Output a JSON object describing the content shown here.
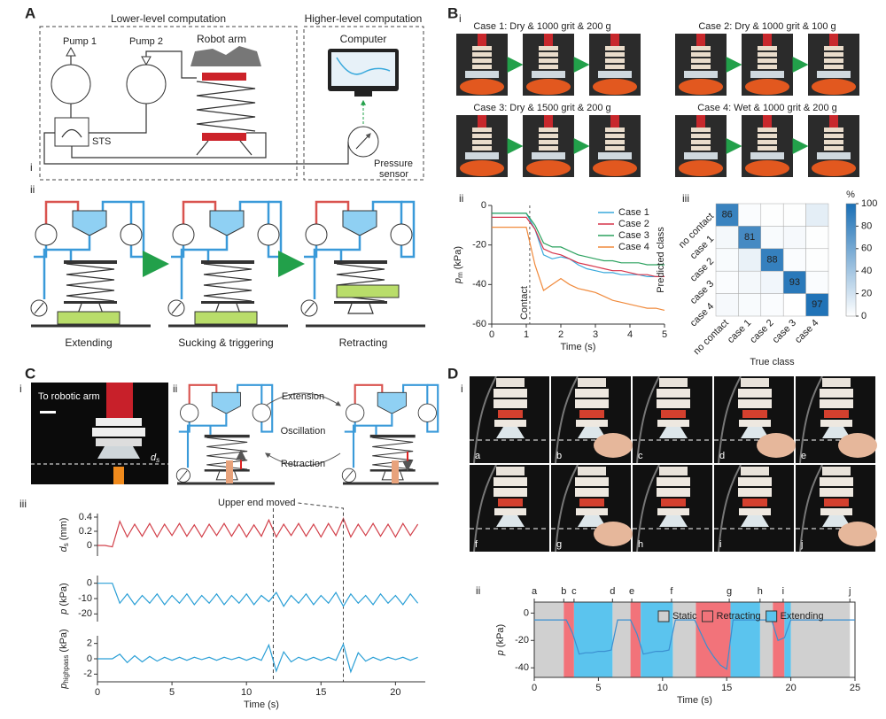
{
  "panels": {
    "A": {
      "letter": "A",
      "headers": [
        "Lower-level computation",
        "Higher-level computation"
      ],
      "labels": {
        "pump1": "Pump 1",
        "pump2": "Pump 2",
        "robot_arm": "Robot arm",
        "computer": "Computer",
        "sts": "STS",
        "sensor": [
          "Pressure",
          "sensor"
        ]
      },
      "sub": [
        "i",
        "ii"
      ],
      "steps": [
        "Extending",
        "Sucking & triggering",
        "Retracting"
      ]
    },
    "B": {
      "letter": "B",
      "sub": [
        "i",
        "ii",
        "iii"
      ],
      "cases": [
        "Case 1: Dry & 1000 grit & 200 g",
        "Case 2: Dry & 1000 grit & 100 g",
        "Case 3: Dry & 1500 grit & 200 g",
        "Case 4: Wet & 1000 grit & 200 g"
      ]
    },
    "C": {
      "letter": "C",
      "sub": [
        "i",
        "ii",
        "iii"
      ],
      "photo_label": "To robotic arm",
      "ds_symbol": "d",
      "ds_sub": "s",
      "cycle": [
        "Extension",
        "Oscillation",
        "Retraction"
      ]
    },
    "D": {
      "letter": "D",
      "sub": [
        "i",
        "ii"
      ],
      "frames": [
        "a",
        "b",
        "c",
        "d",
        "e",
        "f",
        "g",
        "h",
        "i",
        "j"
      ]
    }
  },
  "chart_data": [
    {
      "type": "line",
      "x": [
        0,
        0.25,
        0.5,
        0.75,
        1,
        1.25,
        1.5,
        1.75,
        2,
        2.25,
        2.5,
        2.75,
        3,
        3.25,
        3.5,
        3.75,
        4,
        4.25,
        4.5,
        4.75,
        5
      ],
      "series": [
        {
          "name": "Case 1",
          "color": "#39a9dc",
          "values": [
            -4,
            -4,
            -4,
            -4,
            -4,
            -12,
            -25,
            -27,
            -26,
            -27,
            -30,
            -32,
            -33,
            -34,
            -34,
            -35,
            -35,
            -35,
            -36,
            -36,
            -36
          ]
        },
        {
          "name": "Case 2",
          "color": "#d6334a",
          "values": [
            -6,
            -6,
            -6,
            -6,
            -6,
            -12,
            -22,
            -24,
            -25,
            -27,
            -29,
            -30,
            -31,
            -32,
            -33,
            -33,
            -34,
            -35,
            -35,
            -36,
            -36
          ]
        },
        {
          "name": "Case 3",
          "color": "#2ca25f",
          "values": [
            -4,
            -4,
            -4,
            -4,
            -4,
            -10,
            -19,
            -21,
            -21,
            -23,
            -25,
            -26,
            -27,
            -28,
            -28,
            -29,
            -29,
            -29,
            -30,
            -30,
            -30
          ]
        },
        {
          "name": "Case 4",
          "color": "#f08a3c",
          "values": [
            -11,
            -11,
            -11,
            -11,
            -11,
            -30,
            -43,
            -40,
            -37,
            -40,
            -42,
            -43,
            -44,
            -46,
            -48,
            -49,
            -50,
            -51,
            -52,
            -52,
            -53
          ]
        }
      ],
      "xlim": [
        0,
        5
      ],
      "xticks": [
        0,
        1,
        2,
        3,
        4,
        5
      ],
      "ylim": [
        -60,
        0
      ],
      "yticks": [
        -60,
        -40,
        -20,
        0
      ],
      "xlabel": "Time (s)",
      "ylabel": {
        "symbol": "p",
        "subscript": "m",
        "unit": "(kPa)"
      },
      "markers": [
        {
          "x": 1.1,
          "label": "Contact"
        }
      ],
      "legend": "upper right",
      "legend_direction": "vertical"
    },
    {
      "type": "heatmap",
      "x_categories": [
        "no contact",
        "case 1",
        "case 2",
        "case 3",
        "case 4"
      ],
      "y_categories": [
        "no contact",
        "case 1",
        "case 2",
        "case 3",
        "case 4"
      ],
      "values": [
        [
          86,
          2,
          1,
          1,
          12
        ],
        [
          5,
          81,
          3,
          4,
          1
        ],
        [
          3,
          9,
          88,
          2,
          1
        ],
        [
          2,
          5,
          6,
          93,
          2
        ],
        [
          4,
          3,
          2,
          0,
          97
        ]
      ],
      "label_cells": "diagonal",
      "colors": [
        "#ffffff",
        "#1a6fb5"
      ],
      "colorbar": {
        "label": "%",
        "lim": [
          0,
          100
        ],
        "ticks": [
          0,
          20,
          40,
          60,
          80,
          100
        ]
      },
      "xlabel": "True class",
      "ylabel": "Predicted class"
    },
    {
      "type": "line",
      "x": [
        0,
        0.5,
        1,
        1.5,
        2,
        2.5,
        3,
        3.5,
        4,
        4.5,
        5,
        5.5,
        6,
        6.5,
        7,
        7.5,
        8,
        8.5,
        9,
        9.5,
        10,
        10.5,
        11,
        11.5,
        12,
        12.5,
        13,
        13.5,
        14,
        14.5,
        15,
        15.5,
        16,
        16.5,
        17,
        17.5,
        18,
        18.5,
        19,
        19.5,
        20,
        20.5,
        21,
        21.5
      ],
      "series": [
        {
          "color": "#d2404a",
          "values": [
            0,
            0,
            -0.02,
            0.34,
            0.12,
            0.3,
            0.13,
            0.31,
            0.12,
            0.3,
            0.14,
            0.31,
            0.13,
            0.29,
            0.12,
            0.3,
            0.14,
            0.31,
            0.13,
            0.3,
            0.12,
            0.29,
            0.13,
            0.36,
            0.12,
            0.3,
            0.14,
            0.31,
            0.13,
            0.3,
            0.12,
            0.31,
            0.14,
            0.38,
            0.12,
            0.3,
            0.14,
            0.31,
            0.13,
            0.3,
            0.12,
            0.31,
            0.14,
            0.3
          ]
        }
      ],
      "xlim": [
        0,
        22
      ],
      "ylim": [
        -0.15,
        0.45
      ],
      "yticks": [
        0,
        0.2,
        0.4
      ],
      "ylabel": {
        "symbol": "d",
        "subscript": "s",
        "unit": "(mm)"
      },
      "annotation": {
        "text": "Upper end moved",
        "x": [
          11.8,
          16.5
        ]
      }
    },
    {
      "type": "line",
      "x": [
        0,
        0.5,
        1,
        1.5,
        2,
        2.5,
        3,
        3.5,
        4,
        4.5,
        5,
        5.5,
        6,
        6.5,
        7,
        7.5,
        8,
        8.5,
        9,
        9.5,
        10,
        10.5,
        11,
        11.5,
        12,
        12.5,
        13,
        13.5,
        14,
        14.5,
        15,
        15.5,
        16,
        16.5,
        17,
        17.5,
        18,
        18.5,
        19,
        19.5,
        20,
        20.5,
        21,
        21.5
      ],
      "series": [
        {
          "color": "#2a9fd6",
          "values": [
            0,
            0,
            0,
            -13,
            -7,
            -14,
            -8,
            -13,
            -7,
            -14,
            -8,
            -13,
            -7,
            -14,
            -8,
            -13,
            -7,
            -14,
            -8,
            -13,
            -7,
            -14,
            -8,
            -12,
            -6,
            -15,
            -8,
            -13,
            -7,
            -14,
            -8,
            -13,
            -6,
            -15,
            -7,
            -13,
            -8,
            -14,
            -7,
            -13,
            -8,
            -14,
            -7,
            -13
          ]
        }
      ],
      "xlim": [
        0,
        22
      ],
      "ylim": [
        -25,
        5
      ],
      "yticks": [
        -20,
        -10,
        0
      ],
      "ylabel": {
        "symbol": "p",
        "subscript": "",
        "unit": "(kPa)"
      }
    },
    {
      "type": "line",
      "x": [
        0,
        0.5,
        1,
        1.5,
        2,
        2.5,
        3,
        3.5,
        4,
        4.5,
        5,
        5.5,
        6,
        6.5,
        7,
        7.5,
        8,
        8.5,
        9,
        9.5,
        10,
        10.5,
        11,
        11.5,
        12,
        12.5,
        13,
        13.5,
        14,
        14.5,
        15,
        15.5,
        16,
        16.5,
        17,
        17.5,
        18,
        18.5,
        19,
        19.5,
        20,
        20.5,
        21,
        21.5
      ],
      "series": [
        {
          "color": "#2a9fd6",
          "values": [
            0,
            0,
            0,
            0.6,
            -0.5,
            0.4,
            -0.4,
            0.3,
            -0.3,
            0.2,
            -0.2,
            0.2,
            -0.2,
            0.2,
            -0.1,
            0.2,
            -0.2,
            0.2,
            -0.1,
            0.2,
            -0.2,
            0.2,
            -0.2,
            1.8,
            -1.6,
            0.9,
            -0.4,
            0.2,
            -0.2,
            0.2,
            -0.2,
            0.2,
            -0.2,
            1.9,
            -1.7,
            0.8,
            -0.3,
            0.2,
            -0.2,
            0.2,
            -0.1,
            0.2,
            -0.2,
            0.2
          ]
        }
      ],
      "xlim": [
        0,
        22
      ],
      "xticks": [
        0,
        5,
        10,
        15,
        20
      ],
      "ylim": [
        -3,
        3
      ],
      "yticks": [
        -2,
        0,
        2
      ],
      "xlabel": "Time (s)",
      "ylabel": {
        "symbol": "p",
        "subscript": "highpass",
        "unit": "(kPa)"
      }
    },
    {
      "type": "line",
      "x": [
        0,
        0.5,
        1,
        1.5,
        2,
        2.5,
        3,
        3.5,
        4,
        4.5,
        5,
        5.5,
        6,
        6.5,
        7,
        7.5,
        8,
        8.5,
        9,
        9.5,
        10,
        10.5,
        11,
        11.5,
        12,
        12.5,
        13,
        13.5,
        14,
        14.5,
        15,
        15.5,
        16,
        16.5,
        17,
        17.5,
        18,
        18.5,
        19,
        19.5,
        20,
        20.5,
        21,
        21.5,
        22,
        22.5,
        23,
        23.5,
        24,
        24.5,
        25
      ],
      "series": [
        {
          "color": "#3b8fd0",
          "values": [
            -5,
            -5,
            -5,
            -5,
            -5,
            -5,
            -15,
            -30,
            -29,
            -29,
            -28,
            -28,
            -27,
            -5,
            -5,
            -5,
            -15,
            -30,
            -29,
            -28,
            -28,
            -27,
            -5,
            -5,
            -5,
            -5,
            -15,
            -25,
            -32,
            -38,
            -41,
            -5,
            -5,
            -5,
            -5,
            -5,
            -5,
            -5,
            -20,
            -18,
            -5,
            -5,
            -5,
            -5,
            -5,
            -5,
            -5,
            -5,
            -5,
            -5,
            -5
          ]
        }
      ],
      "bands": [
        {
          "name": "Static",
          "color": "#d0d0d0",
          "spans": [
            [
              0,
              2.3
            ],
            [
              6.1,
              7.5
            ],
            [
              10.8,
              12.6
            ],
            [
              17.6,
              18.6
            ],
            [
              20,
              24.6
            ]
          ]
        },
        {
          "name": "Retracting",
          "color": "#f2737a",
          "spans": [
            [
              2.3,
              3.1
            ],
            [
              7.5,
              8.3
            ],
            [
              12.6,
              15.3
            ],
            [
              18.6,
              19.5
            ]
          ]
        },
        {
          "name": "Extending",
          "color": "#5bc4ee",
          "spans": [
            [
              3.1,
              6.1
            ],
            [
              8.3,
              10.8
            ],
            [
              15.3,
              17.6
            ],
            [
              19.5,
              20
            ]
          ]
        }
      ],
      "events": [
        {
          "label": "a",
          "x": 0
        },
        {
          "label": "b",
          "x": 2.3
        },
        {
          "label": "c",
          "x": 3.1
        },
        {
          "label": "d",
          "x": 6.1
        },
        {
          "label": "e",
          "x": 7.6
        },
        {
          "label": "f",
          "x": 10.7
        },
        {
          "label": "g",
          "x": 15.2
        },
        {
          "label": "h",
          "x": 17.6
        },
        {
          "label": "i",
          "x": 19.4
        },
        {
          "label": "j",
          "x": 24.6
        }
      ],
      "xlim": [
        0,
        25
      ],
      "xticks": [
        0,
        5,
        10,
        15,
        20,
        25
      ],
      "ylim": [
        -47,
        8
      ],
      "yticks": [
        -40,
        -20,
        0
      ],
      "xlabel": "Time (s)",
      "ylabel": {
        "symbol": "p",
        "subscript": "",
        "unit": "(kPa)"
      },
      "frame": true,
      "legend": "upper right",
      "legend_direction": "horizontal"
    }
  ]
}
